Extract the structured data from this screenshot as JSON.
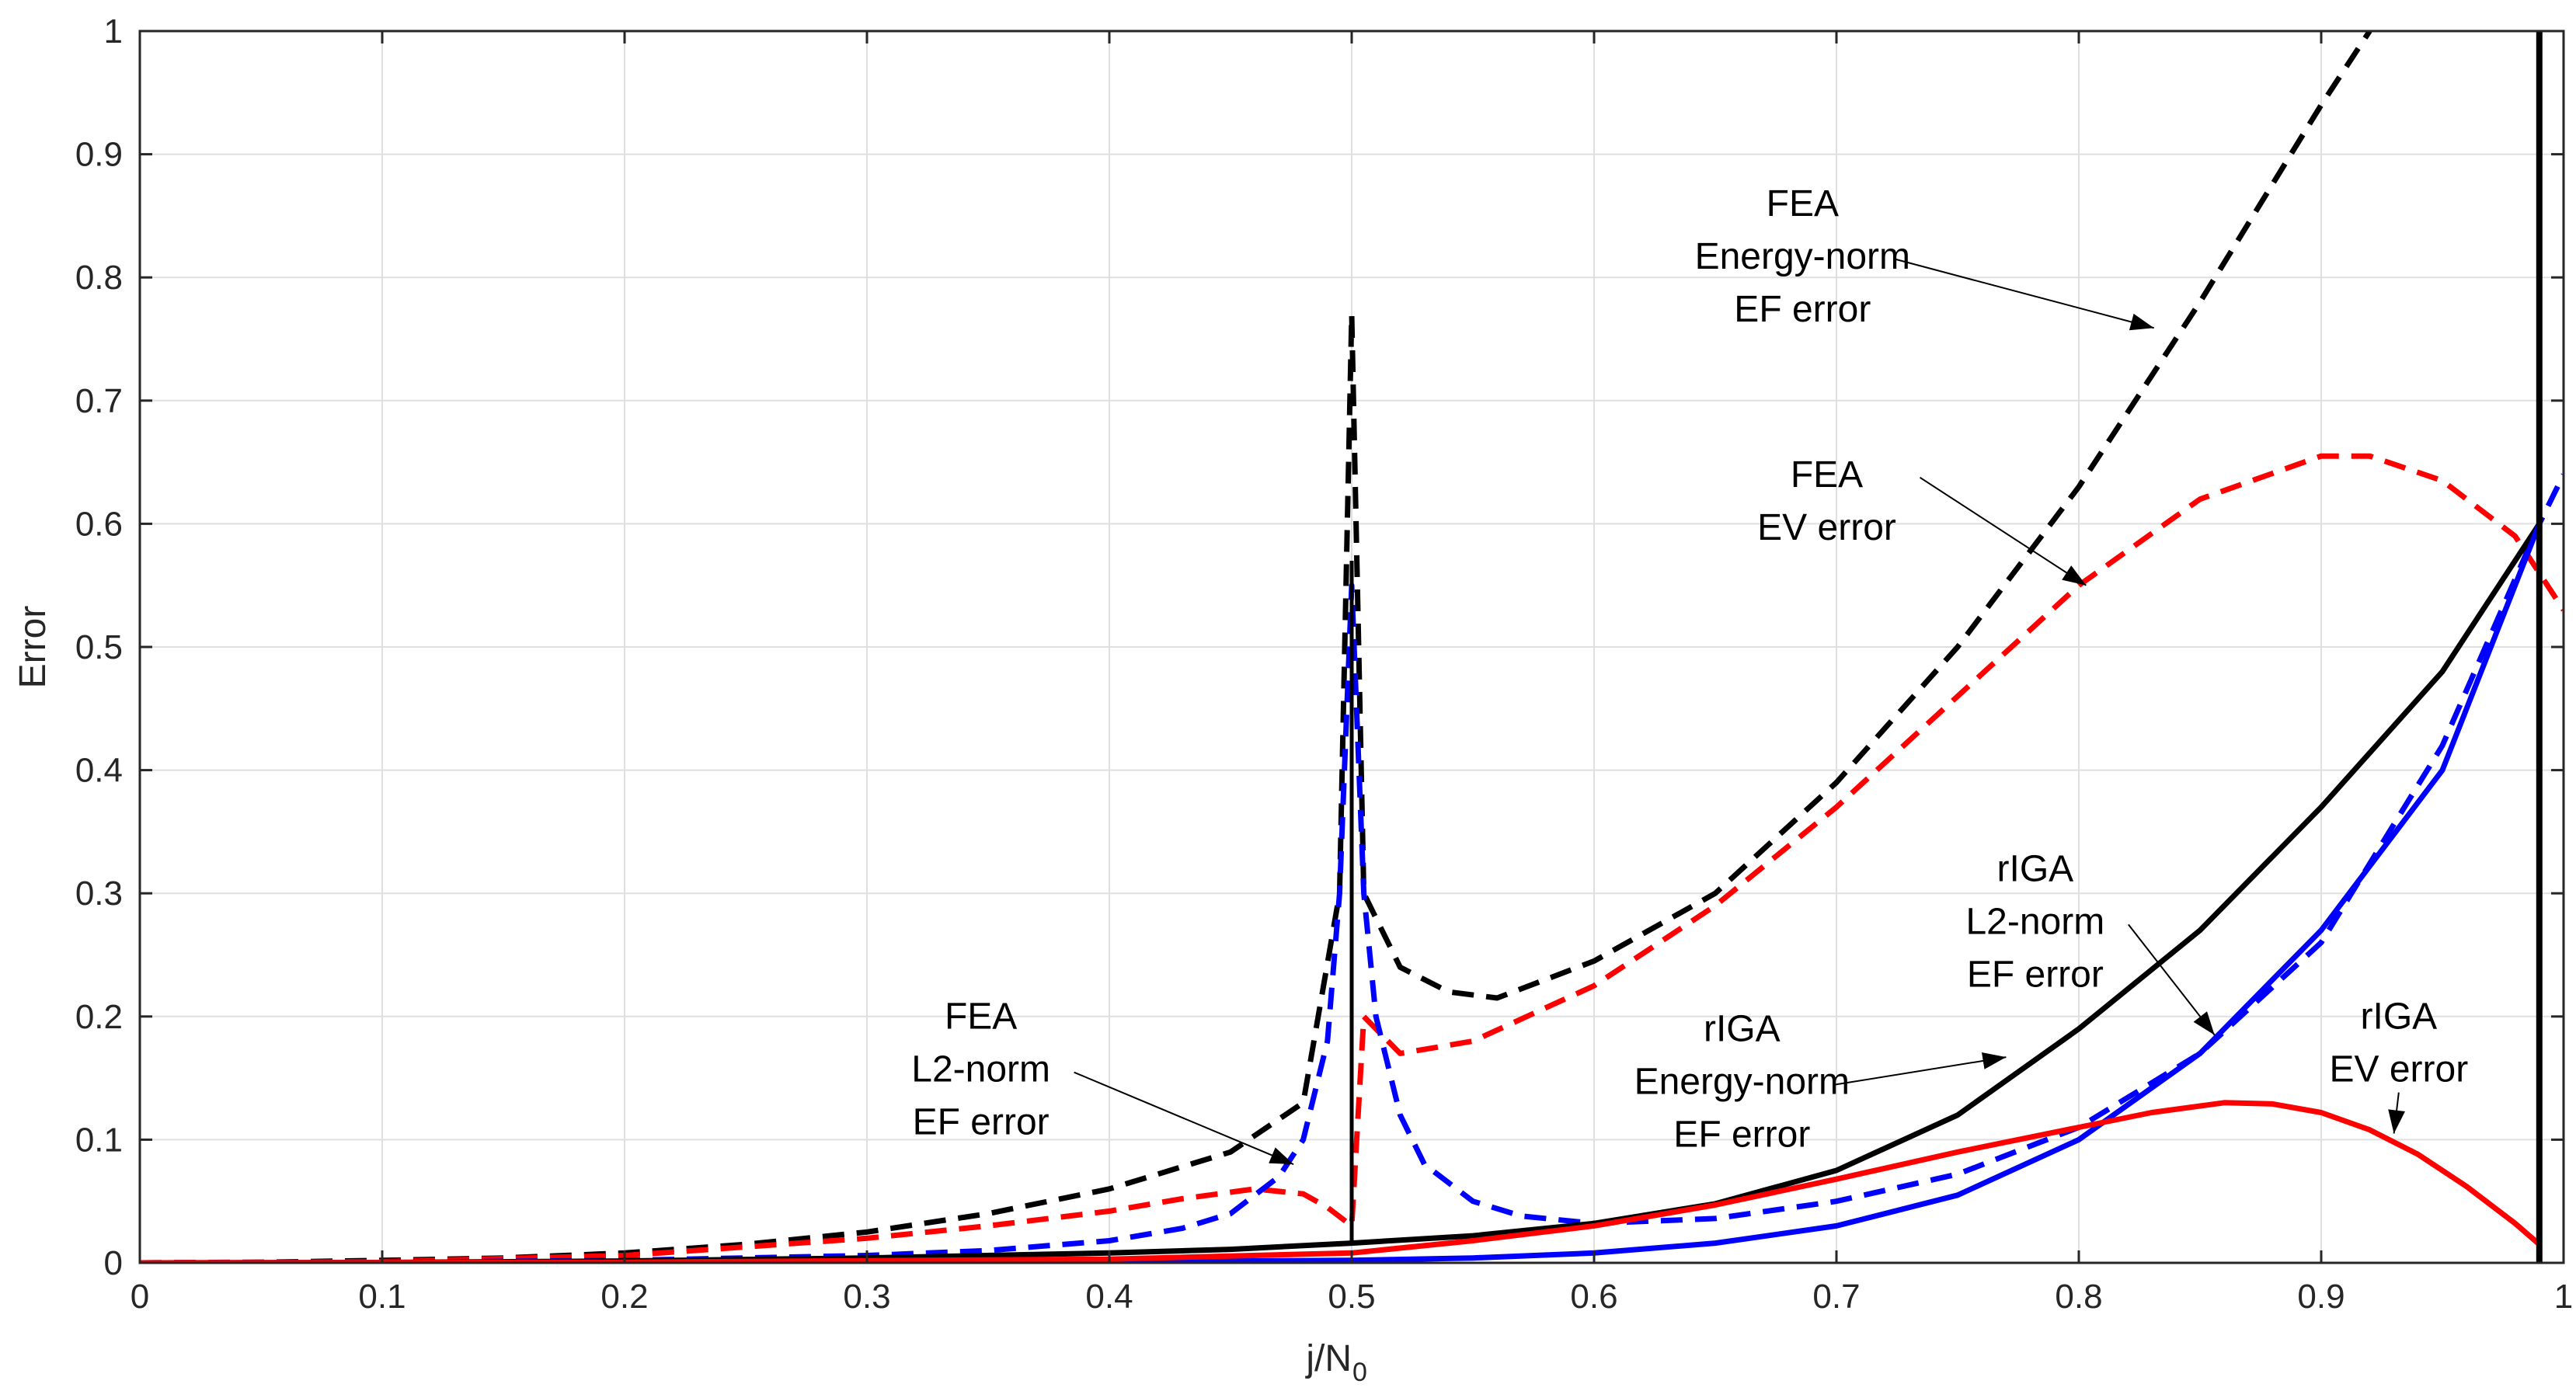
{
  "chart_data": {
    "type": "line",
    "title": "",
    "xlabel_main": "j/N",
    "xlabel_sub": "0",
    "ylabel": "Error",
    "xlim": [
      0,
      1
    ],
    "ylim": [
      0,
      1
    ],
    "grid": true,
    "x_ticks": [
      "0",
      "0.1",
      "0.2",
      "0.3",
      "0.4",
      "0.5",
      "0.6",
      "0.7",
      "0.8",
      "0.9",
      "1"
    ],
    "y_ticks": [
      "0",
      "0.1",
      "0.2",
      "0.3",
      "0.4",
      "0.5",
      "0.6",
      "0.7",
      "0.8",
      "0.9",
      "1"
    ],
    "colors": {
      "black": "#000000",
      "red": "#ff0000",
      "blue": "#0000ff"
    },
    "series": [
      {
        "name": "FEA Energy-norm EF error",
        "color": "#000000",
        "style": "dashed",
        "x": [
          0,
          0.05,
          0.1,
          0.15,
          0.2,
          0.25,
          0.3,
          0.35,
          0.4,
          0.45,
          0.48,
          0.495,
          0.5,
          0.505,
          0.52,
          0.54,
          0.56,
          0.6,
          0.65,
          0.7,
          0.75,
          0.8,
          0.85,
          0.9,
          0.92
        ],
        "y": [
          0,
          0.0005,
          0.002,
          0.004,
          0.008,
          0.015,
          0.025,
          0.04,
          0.06,
          0.09,
          0.13,
          0.3,
          0.77,
          0.3,
          0.24,
          0.22,
          0.215,
          0.245,
          0.3,
          0.39,
          0.5,
          0.63,
          0.78,
          0.94,
          1.0
        ]
      },
      {
        "name": "FEA EV error",
        "color": "#ff0000",
        "style": "dashed",
        "x": [
          0,
          0.1,
          0.2,
          0.3,
          0.35,
          0.4,
          0.43,
          0.46,
          0.48,
          0.49,
          0.5,
          0.505,
          0.52,
          0.55,
          0.6,
          0.65,
          0.7,
          0.75,
          0.8,
          0.85,
          0.9,
          0.92,
          0.95,
          0.98,
          1.0
        ],
        "y": [
          0,
          0.001,
          0.006,
          0.02,
          0.03,
          0.042,
          0.052,
          0.06,
          0.056,
          0.045,
          0.03,
          0.2,
          0.17,
          0.18,
          0.225,
          0.29,
          0.37,
          0.46,
          0.55,
          0.62,
          0.655,
          0.655,
          0.635,
          0.59,
          0.53
        ]
      },
      {
        "name": "FEA L2-norm EF error",
        "color": "#0000ff",
        "style": "dashed",
        "x": [
          0,
          0.1,
          0.2,
          0.3,
          0.35,
          0.4,
          0.43,
          0.45,
          0.47,
          0.48,
          0.49,
          0.495,
          0.5,
          0.505,
          0.51,
          0.52,
          0.53,
          0.55,
          0.57,
          0.6,
          0.65,
          0.7,
          0.75,
          0.8,
          0.85,
          0.9,
          0.95,
          0.99,
          1.0
        ],
        "y": [
          0,
          0.0005,
          0.002,
          0.006,
          0.01,
          0.018,
          0.028,
          0.04,
          0.07,
          0.1,
          0.18,
          0.3,
          0.55,
          0.3,
          0.2,
          0.12,
          0.08,
          0.05,
          0.038,
          0.032,
          0.036,
          0.05,
          0.072,
          0.11,
          0.17,
          0.26,
          0.42,
          0.6,
          0.64
        ]
      },
      {
        "name": "rIGA Energy-norm EF error",
        "color": "#000000",
        "style": "solid",
        "x": [
          0,
          0.1,
          0.2,
          0.3,
          0.4,
          0.45,
          0.5,
          0.55,
          0.6,
          0.65,
          0.7,
          0.75,
          0.8,
          0.85,
          0.9,
          0.95,
          0.99
        ],
        "y": [
          0,
          0.0003,
          0.0015,
          0.004,
          0.008,
          0.011,
          0.016,
          0.022,
          0.032,
          0.048,
          0.075,
          0.12,
          0.19,
          0.27,
          0.37,
          0.48,
          0.6
        ]
      },
      {
        "name": "rIGA L2-norm EF error",
        "color": "#0000ff",
        "style": "solid",
        "x": [
          0,
          0.2,
          0.4,
          0.5,
          0.55,
          0.6,
          0.65,
          0.7,
          0.75,
          0.8,
          0.85,
          0.9,
          0.95,
          0.99
        ],
        "y": [
          0,
          0.0002,
          0.001,
          0.002,
          0.004,
          0.008,
          0.016,
          0.03,
          0.055,
          0.1,
          0.17,
          0.27,
          0.4,
          0.6
        ]
      },
      {
        "name": "rIGA EV error",
        "color": "#ff0000",
        "style": "solid",
        "x": [
          0,
          0.2,
          0.4,
          0.5,
          0.55,
          0.6,
          0.65,
          0.7,
          0.75,
          0.8,
          0.83,
          0.86,
          0.88,
          0.9,
          0.92,
          0.94,
          0.96,
          0.98,
          0.99
        ],
        "y": [
          0,
          0.0005,
          0.003,
          0.008,
          0.018,
          0.03,
          0.047,
          0.068,
          0.09,
          0.11,
          0.122,
          0.13,
          0.129,
          0.122,
          0.108,
          0.088,
          0.062,
          0.032,
          0.015
        ]
      }
    ],
    "annotations": [
      {
        "lines": [
          "FEA",
          "Energy-norm",
          "EF error"
        ],
        "text_at": [
          0.686,
          0.85
        ],
        "arrow_to": [
          0.831,
          0.759
        ]
      },
      {
        "lines": [
          "FEA",
          "EV error"
        ],
        "text_at": [
          0.696,
          0.63
        ],
        "arrow_to": [
          0.803,
          0.55
        ]
      },
      {
        "lines": [
          "rIGA",
          "L2-norm",
          "EF error"
        ],
        "text_at": [
          0.782,
          0.31
        ],
        "arrow_to": [
          0.856,
          0.185
        ]
      },
      {
        "lines": [
          "FEA",
          "L2-norm",
          "EF error"
        ],
        "text_at": [
          0.347,
          0.19
        ],
        "arrow_to": [
          0.476,
          0.08
        ]
      },
      {
        "lines": [
          "rIGA",
          "Energy-norm",
          "EF error"
        ],
        "text_at": [
          0.661,
          0.18
        ],
        "arrow_to": [
          0.77,
          0.167
        ]
      },
      {
        "lines": [
          "rIGA",
          "EV error"
        ],
        "text_at": [
          0.932,
          0.19
        ],
        "arrow_to": [
          0.93,
          0.105
        ]
      }
    ]
  }
}
